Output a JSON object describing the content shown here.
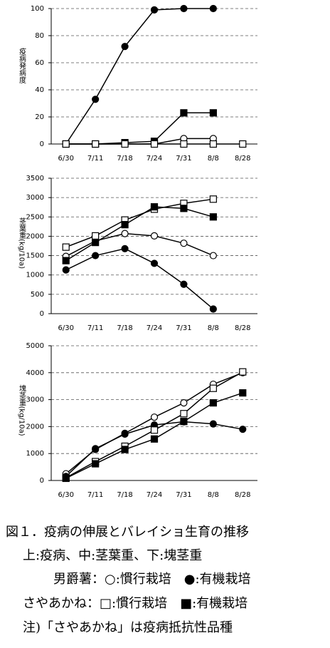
{
  "chart_data": [
    {
      "type": "line",
      "ylabel": "疫病発病度",
      "categories": [
        "6/30",
        "7/11",
        "7/18",
        "7/24",
        "7/31",
        "8/8",
        "8/28"
      ],
      "series": [
        {
          "color": "#000000",
          "marker": "circle",
          "filled": true,
          "values": [
            0,
            33,
            72,
            99,
            100,
            100,
            null
          ]
        },
        {
          "color": "#000000",
          "marker": "square",
          "filled": true,
          "values": [
            0,
            0,
            1,
            2,
            23,
            23,
            null
          ]
        },
        {
          "color": "#000000",
          "marker": "circle",
          "filled": false,
          "values": [
            0,
            0,
            0,
            0,
            4,
            4,
            null
          ]
        },
        {
          "color": "#000000",
          "marker": "square",
          "filled": false,
          "values": [
            0,
            0,
            0,
            0,
            0,
            0,
            0
          ]
        }
      ],
      "ylim": [
        0,
        100
      ],
      "yticks": [
        0,
        20,
        40,
        60,
        80,
        100
      ],
      "grid": true
    },
    {
      "type": "line",
      "ylabel": "茎葉重(kg/10a)",
      "categories": [
        "6/30",
        "7/11",
        "7/18",
        "7/24",
        "7/31",
        "8/8",
        "8/28"
      ],
      "series": [
        {
          "color": "#000000",
          "marker": "circle",
          "filled": false,
          "values": [
            1480,
            1880,
            2070,
            2010,
            1820,
            1500,
            null
          ]
        },
        {
          "color": "#000000",
          "marker": "circle",
          "filled": true,
          "values": [
            1130,
            1500,
            1680,
            1300,
            760,
            120,
            null
          ]
        },
        {
          "color": "#000000",
          "marker": "square",
          "filled": false,
          "values": [
            1720,
            2010,
            2420,
            2700,
            2850,
            2960,
            null
          ]
        },
        {
          "color": "#000000",
          "marker": "square",
          "filled": true,
          "values": [
            1370,
            1840,
            2300,
            2760,
            2720,
            2500,
            null
          ]
        }
      ],
      "ylim": [
        0,
        3500
      ],
      "yticks": [
        0,
        500,
        1000,
        1500,
        2000,
        2500,
        3000,
        3500
      ],
      "grid": true
    },
    {
      "type": "line",
      "ylabel": "塊茎重(kg/10a)",
      "categories": [
        "6/30",
        "7/11",
        "7/18",
        "7/24",
        "7/31",
        "8/8",
        "8/28"
      ],
      "series": [
        {
          "color": "#000000",
          "marker": "circle",
          "filled": false,
          "values": [
            250,
            1150,
            1750,
            2350,
            2880,
            3570,
            4000
          ]
        },
        {
          "color": "#000000",
          "marker": "circle",
          "filled": true,
          "values": [
            150,
            1180,
            1720,
            2060,
            2180,
            2100,
            1900
          ]
        },
        {
          "color": "#000000",
          "marker": "square",
          "filled": false,
          "values": [
            100,
            700,
            1270,
            1870,
            2480,
            3420,
            4030
          ]
        },
        {
          "color": "#000000",
          "marker": "square",
          "filled": true,
          "values": [
            80,
            620,
            1150,
            1540,
            2190,
            2880,
            3250
          ]
        }
      ],
      "ylim": [
        0,
        5000
      ],
      "yticks": [
        0,
        1000,
        2000,
        3000,
        4000,
        5000
      ],
      "grid": true
    }
  ],
  "caption": {
    "lines": [
      "図１．疫病の伸展とバレイショ生育の推移",
      "上:疫病、中:茎葉重、下:塊茎重",
      "男爵薯：○:慣行栽培　●:有機栽培",
      "さやあかね：□:慣行栽培　■:有機栽培",
      "注)「さやあかね」は疫病抵抗性品種"
    ]
  }
}
